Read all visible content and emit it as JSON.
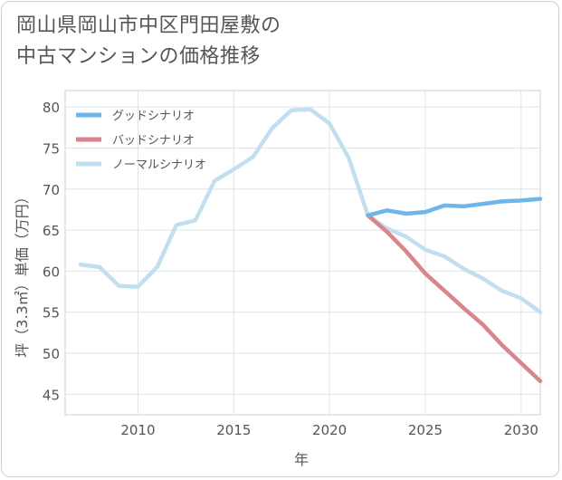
{
  "title_line1": "岡山県岡山市中区門田屋敷の",
  "title_line2": "中古マンションの価格推移",
  "chart_data": {
    "type": "line",
    "xlabel": "年",
    "ylabel": "坪（3.3㎡）単価（万円）",
    "xlim": [
      2006.2,
      2031
    ],
    "ylim": [
      42.5,
      82
    ],
    "xticks": [
      2010,
      2015,
      2020,
      2025,
      2030
    ],
    "yticks": [
      45,
      50,
      55,
      60,
      65,
      70,
      75,
      80
    ],
    "grid": true,
    "legend_position": "top-left",
    "series": [
      {
        "name": "グッドシナリオ",
        "color": "#6cb6ea",
        "x": [
          2022,
          2023,
          2024,
          2025,
          2026,
          2027,
          2028,
          2029,
          2030,
          2031
        ],
        "y": [
          66.8,
          67.4,
          67.0,
          67.2,
          68.0,
          67.9,
          68.2,
          68.5,
          68.6,
          68.8
        ]
      },
      {
        "name": "バッドシナリオ",
        "color": "#d9858e",
        "x": [
          2022,
          2023,
          2024,
          2025,
          2026,
          2027,
          2028,
          2029,
          2030,
          2031
        ],
        "y": [
          66.8,
          64.8,
          62.4,
          59.7,
          57.6,
          55.5,
          53.5,
          51.0,
          48.8,
          46.6
        ]
      },
      {
        "name": "ノーマルシナリオ",
        "color": "#c2dfee",
        "x": [
          2007,
          2008,
          2009,
          2010,
          2011,
          2012,
          2013,
          2014,
          2015,
          2016,
          2017,
          2018,
          2019,
          2020,
          2021,
          2022,
          2023,
          2024,
          2025,
          2026,
          2027,
          2028,
          2029,
          2030,
          2031
        ],
        "y": [
          60.8,
          60.5,
          58.2,
          58.1,
          60.5,
          65.6,
          66.2,
          71.0,
          72.4,
          73.9,
          77.4,
          79.6,
          79.7,
          78.0,
          73.8,
          66.8,
          65.2,
          64.2,
          62.6,
          61.8,
          60.3,
          59.1,
          57.6,
          56.7,
          55.0
        ]
      }
    ]
  }
}
